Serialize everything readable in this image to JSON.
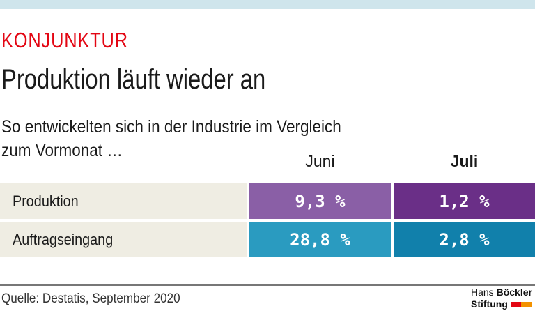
{
  "kicker": "KONJUNKTUR",
  "title": "Produktion läuft wieder an",
  "subtitle_line1": "So entwickelten sich in der Industrie im Vergleich",
  "subtitle_line2": "zum Vormonat …",
  "source": "Quelle: Destatis, September 2020",
  "logo": {
    "line1_regular": "Hans",
    "line1_bold": "Böckler",
    "line2": "Stiftung",
    "colors": [
      "#e30613",
      "#f39200"
    ]
  },
  "chart_data": {
    "type": "table",
    "columns": [
      "Juni",
      "Juli"
    ],
    "rows": [
      {
        "label": "Produktion",
        "values": [
          "9,3 %",
          "1,2 %"
        ],
        "colors": [
          "#8a5fa6",
          "#6a2f87"
        ]
      },
      {
        "label": "Auftragseingang",
        "values": [
          "28,8 %",
          "2,8 %"
        ],
        "colors": [
          "#2a9bc0",
          "#1180ab"
        ]
      }
    ]
  }
}
